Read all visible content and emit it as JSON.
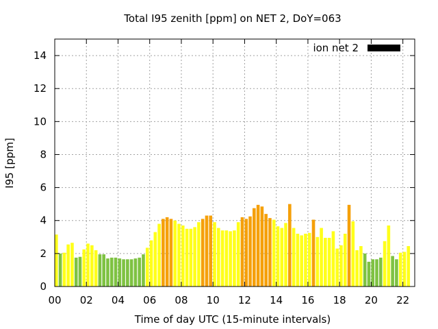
{
  "chart_data": {
    "type": "bar",
    "title": "Total I95 zenith [ppm] on NET 2, DoY=063",
    "xlabel": "Time of day UTC (15-minute intervals)",
    "ylabel": "I95 [ppm]",
    "xlim": [
      0,
      22.75
    ],
    "ylim": [
      0,
      15
    ],
    "x_ticks": [
      {
        "value": 0,
        "label": "00"
      },
      {
        "value": 2,
        "label": "02"
      },
      {
        "value": 4,
        "label": "04"
      },
      {
        "value": 6,
        "label": "06"
      },
      {
        "value": 8,
        "label": "08"
      },
      {
        "value": 10,
        "label": "10"
      },
      {
        "value": 12,
        "label": "12"
      },
      {
        "value": 14,
        "label": "14"
      },
      {
        "value": 16,
        "label": "16"
      },
      {
        "value": 18,
        "label": "18"
      },
      {
        "value": 20,
        "label": "20"
      },
      {
        "value": 22,
        "label": "22"
      }
    ],
    "y_ticks": [
      {
        "value": 0,
        "label": "0"
      },
      {
        "value": 2,
        "label": "2"
      },
      {
        "value": 4,
        "label": "4"
      },
      {
        "value": 6,
        "label": "6"
      },
      {
        "value": 8,
        "label": "8"
      },
      {
        "value": 10,
        "label": "10"
      },
      {
        "value": 12,
        "label": "12"
      },
      {
        "value": 14,
        "label": "14"
      }
    ],
    "grid": true,
    "legend": {
      "label": "ion net 2",
      "color": "#000000",
      "placement": "top-right"
    },
    "bar_interval_hours": 0.25,
    "colors": {
      "low": "#7ec242",
      "medium": "#ffff1a",
      "high": "#f5a00a"
    },
    "values": [
      3.15,
      2.0,
      2.05,
      2.55,
      2.65,
      1.75,
      1.8,
      2.25,
      2.6,
      2.5,
      2.2,
      1.95,
      1.95,
      1.7,
      1.75,
      1.75,
      1.7,
      1.65,
      1.65,
      1.65,
      1.7,
      1.75,
      1.95,
      2.35,
      2.8,
      3.3,
      3.8,
      4.1,
      4.2,
      4.1,
      4.0,
      3.8,
      3.7,
      3.5,
      3.5,
      3.6,
      3.9,
      4.1,
      4.3,
      4.3,
      3.9,
      3.55,
      3.4,
      3.4,
      3.35,
      3.4,
      3.9,
      4.2,
      4.1,
      4.25,
      4.75,
      4.95,
      4.85,
      4.4,
      4.15,
      4.05,
      3.65,
      3.55,
      3.85,
      5.0,
      3.55,
      3.2,
      3.1,
      3.2,
      3.25,
      4.05,
      3.0,
      3.55,
      2.95,
      2.95,
      3.35,
      2.3,
      2.5,
      3.2,
      4.95,
      3.95,
      2.2,
      2.45,
      2.0,
      1.5,
      1.65,
      1.65,
      1.75,
      2.75,
      3.7,
      1.85,
      1.65,
      2.05,
      2.1,
      2.45
    ],
    "levels": [
      "medium",
      "low",
      "medium",
      "medium",
      "medium",
      "low",
      "low",
      "medium",
      "medium",
      "medium",
      "medium",
      "low",
      "low",
      "low",
      "low",
      "low",
      "low",
      "low",
      "low",
      "low",
      "low",
      "low",
      "low",
      "medium",
      "medium",
      "medium",
      "medium",
      "high",
      "high",
      "high",
      "medium",
      "medium",
      "medium",
      "medium",
      "medium",
      "medium",
      "medium",
      "high",
      "high",
      "high",
      "medium",
      "medium",
      "medium",
      "medium",
      "medium",
      "medium",
      "medium",
      "high",
      "high",
      "high",
      "high",
      "high",
      "high",
      "high",
      "high",
      "medium",
      "medium",
      "medium",
      "medium",
      "high",
      "medium",
      "medium",
      "medium",
      "medium",
      "medium",
      "high",
      "medium",
      "medium",
      "medium",
      "medium",
      "medium",
      "medium",
      "medium",
      "medium",
      "high",
      "medium",
      "medium",
      "medium",
      "low",
      "low",
      "low",
      "low",
      "low",
      "medium",
      "medium",
      "low",
      "low",
      "medium",
      "medium",
      "medium"
    ]
  }
}
